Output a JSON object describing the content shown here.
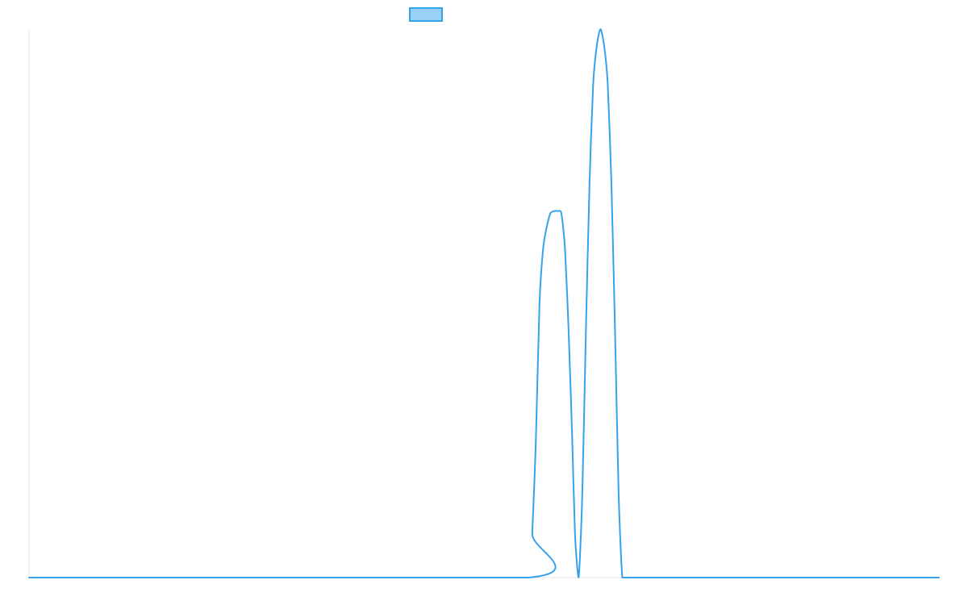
{
  "chart_data": {
    "type": "line",
    "title": "",
    "xlabel": "",
    "ylabel": "",
    "grid": false,
    "legend": {
      "placement": "top-center",
      "entries": [
        ""
      ]
    },
    "colors": {
      "series": "#36a2eb",
      "series_fill": "#9ad0f5",
      "axis": "#e6e6e6"
    },
    "xlim": [
      0,
      1
    ],
    "ylim": [
      0,
      1
    ],
    "series": [
      {
        "x": [
          0.0,
          0.549,
          0.553,
          0.557,
          0.561,
          0.565,
          0.569,
          0.573,
          0.577,
          0.581,
          0.585,
          0.589,
          0.593,
          0.597,
          0.6,
          0.604,
          0.608,
          0.612,
          0.616,
          0.62,
          0.624,
          0.628,
          0.632,
          0.636,
          0.64,
          0.644,
          0.648,
          0.652,
          0.656,
          0.66,
          0.664,
          0.668,
          0.672,
          0.676,
          0.68,
          0.684,
          0.688,
          0.692,
          1.0
        ],
        "y": [
          0.0,
          0.0,
          0.08,
          0.25,
          0.5,
          0.6,
          0.64,
          0.664,
          0.668,
          0.668,
          0.664,
          0.6,
          0.45,
          0.25,
          0.08,
          0.0,
          0.15,
          0.45,
          0.72,
          0.9,
          0.97,
          1.0,
          0.97,
          0.9,
          0.72,
          0.45,
          0.15,
          0.0,
          0.0,
          0.0,
          0.0,
          0.0,
          0.0,
          0.0,
          0.0,
          0.0,
          0.0,
          0.0,
          0.0
        ]
      }
    ]
  }
}
